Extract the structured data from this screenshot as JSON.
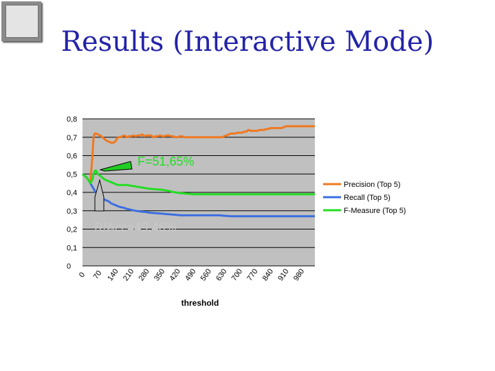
{
  "slide": {
    "title": "Results (Interactive Mode)",
    "logo": "sketch-logo-image"
  },
  "chart_data": {
    "type": "line",
    "xlabel": "threshold",
    "ylabel": "",
    "categories": [
      "0",
      "70",
      "140",
      "210",
      "280",
      "350",
      "420",
      "490",
      "560",
      "630",
      "700",
      "770",
      "840",
      "910",
      "980"
    ],
    "x": [
      0,
      20,
      35,
      45,
      50,
      55,
      60,
      70,
      80,
      90,
      100,
      110,
      120,
      130,
      140,
      150,
      160,
      170,
      180,
      190,
      200,
      210,
      220,
      230,
      240,
      250,
      260,
      270,
      280,
      290,
      300,
      310,
      320,
      330,
      340,
      350,
      360,
      370,
      380,
      390,
      400,
      410,
      420,
      430,
      440,
      450,
      460,
      470,
      480,
      490,
      500,
      510,
      520,
      530,
      540,
      550,
      560,
      570,
      580,
      590,
      600,
      610,
      620,
      630,
      640,
      650,
      660,
      670,
      680,
      690,
      700,
      710,
      720,
      730,
      740,
      750,
      760,
      770,
      780,
      790,
      800,
      810,
      820,
      830,
      840,
      850,
      860,
      870,
      880,
      890,
      900,
      910,
      920,
      930,
      940,
      950,
      960,
      970,
      980,
      990,
      1000,
      1010,
      1020,
      1030,
      1040,
      1050
    ],
    "series": [
      {
        "name": "Precision (Top 5)",
        "color": "#f07820",
        "values": [
          0.5,
          0.48,
          0.45,
          0.6,
          0.7,
          0.72,
          0.72,
          0.715,
          0.71,
          0.7,
          0.69,
          0.68,
          0.675,
          0.67,
          0.67,
          0.68,
          0.7,
          0.7,
          0.705,
          0.71,
          0.7,
          0.705,
          0.705,
          0.71,
          0.705,
          0.71,
          0.71,
          0.715,
          0.705,
          0.71,
          0.71,
          0.71,
          0.7,
          0.705,
          0.705,
          0.71,
          0.705,
          0.705,
          0.71,
          0.71,
          0.705,
          0.705,
          0.7,
          0.7,
          0.705,
          0.705,
          0.7,
          0.7,
          0.7,
          0.7,
          0.7,
          0.7,
          0.7,
          0.7,
          0.7,
          0.7,
          0.7,
          0.7,
          0.7,
          0.7,
          0.7,
          0.7,
          0.7,
          0.7,
          0.705,
          0.71,
          0.715,
          0.72,
          0.72,
          0.72,
          0.725,
          0.725,
          0.725,
          0.73,
          0.73,
          0.74,
          0.735,
          0.735,
          0.735,
          0.735,
          0.74,
          0.74,
          0.74,
          0.745,
          0.745,
          0.75,
          0.75,
          0.75,
          0.75,
          0.75,
          0.75,
          0.755,
          0.76,
          0.76,
          0.76,
          0.76,
          0.76,
          0.76,
          0.76,
          0.76,
          0.76,
          0.76,
          0.76,
          0.76,
          0.76,
          0.76
        ]
      },
      {
        "name": "Recall (Top 5)",
        "color": "#3b6ee0",
        "values": [
          0.5,
          0.48,
          0.45,
          0.43,
          0.42,
          0.41,
          0.4,
          0.39,
          0.38,
          0.37,
          0.36,
          0.355,
          0.35,
          0.34,
          0.335,
          0.33,
          0.325,
          0.32,
          0.318,
          0.315,
          0.31,
          0.308,
          0.305,
          0.302,
          0.3,
          0.298,
          0.296,
          0.295,
          0.294,
          0.292,
          0.29,
          0.289,
          0.288,
          0.287,
          0.286,
          0.285,
          0.284,
          0.283,
          0.282,
          0.281,
          0.28,
          0.279,
          0.278,
          0.277,
          0.276,
          0.275,
          0.275,
          0.275,
          0.275,
          0.275,
          0.275,
          0.275,
          0.275,
          0.275,
          0.275,
          0.275,
          0.275,
          0.275,
          0.275,
          0.275,
          0.275,
          0.275,
          0.275,
          0.274,
          0.273,
          0.272,
          0.271,
          0.27,
          0.27,
          0.27,
          0.27,
          0.27,
          0.27,
          0.27,
          0.27,
          0.27,
          0.27,
          0.27,
          0.27,
          0.27,
          0.27,
          0.27,
          0.27,
          0.27,
          0.27,
          0.27,
          0.27,
          0.27,
          0.27,
          0.27,
          0.27,
          0.27,
          0.27,
          0.27,
          0.27,
          0.27,
          0.27,
          0.27,
          0.27,
          0.27,
          0.27,
          0.27,
          0.27,
          0.27,
          0.27,
          0.27
        ]
      },
      {
        "name": "F-Measure (Top 5)",
        "color": "#22dd22",
        "values": [
          0.5,
          0.48,
          0.45,
          0.47,
          0.5,
          0.515,
          0.52,
          0.5,
          0.49,
          0.48,
          0.47,
          0.465,
          0.46,
          0.455,
          0.45,
          0.445,
          0.44,
          0.44,
          0.44,
          0.44,
          0.44,
          0.438,
          0.436,
          0.434,
          0.432,
          0.43,
          0.428,
          0.426,
          0.424,
          0.422,
          0.42,
          0.419,
          0.418,
          0.417,
          0.416,
          0.415,
          0.414,
          0.412,
          0.41,
          0.408,
          0.405,
          0.402,
          0.4,
          0.398,
          0.396,
          0.395,
          0.394,
          0.393,
          0.392,
          0.391,
          0.39,
          0.39,
          0.39,
          0.39,
          0.39,
          0.39,
          0.39,
          0.39,
          0.39,
          0.39,
          0.39,
          0.39,
          0.39,
          0.39,
          0.39,
          0.39,
          0.39,
          0.39,
          0.39,
          0.39,
          0.39,
          0.39,
          0.39,
          0.39,
          0.39,
          0.39,
          0.39,
          0.39,
          0.39,
          0.39,
          0.39,
          0.39,
          0.39,
          0.39,
          0.39,
          0.39,
          0.39,
          0.39,
          0.39,
          0.39,
          0.39,
          0.39,
          0.39,
          0.39,
          0.39,
          0.39,
          0.39,
          0.39,
          0.39,
          0.39,
          0.39,
          0.39,
          0.39,
          0.39,
          0.39,
          0.39
        ]
      }
    ],
    "ylim": [
      0,
      0.8
    ],
    "yticks": [
      "0",
      "0,1",
      "0,2",
      "0,3",
      "0,4",
      "0,5",
      "0,6",
      "0,7",
      "0,8"
    ],
    "grid": true,
    "legend": "right",
    "annotations": [
      {
        "text": "F=51,65%",
        "x": 55,
        "y": 0.52,
        "color": "#22dd22"
      },
      {
        "text": "R/Acc=49,46%",
        "x": 45,
        "y": 0.43,
        "color": "#c8c8c8"
      }
    ]
  }
}
